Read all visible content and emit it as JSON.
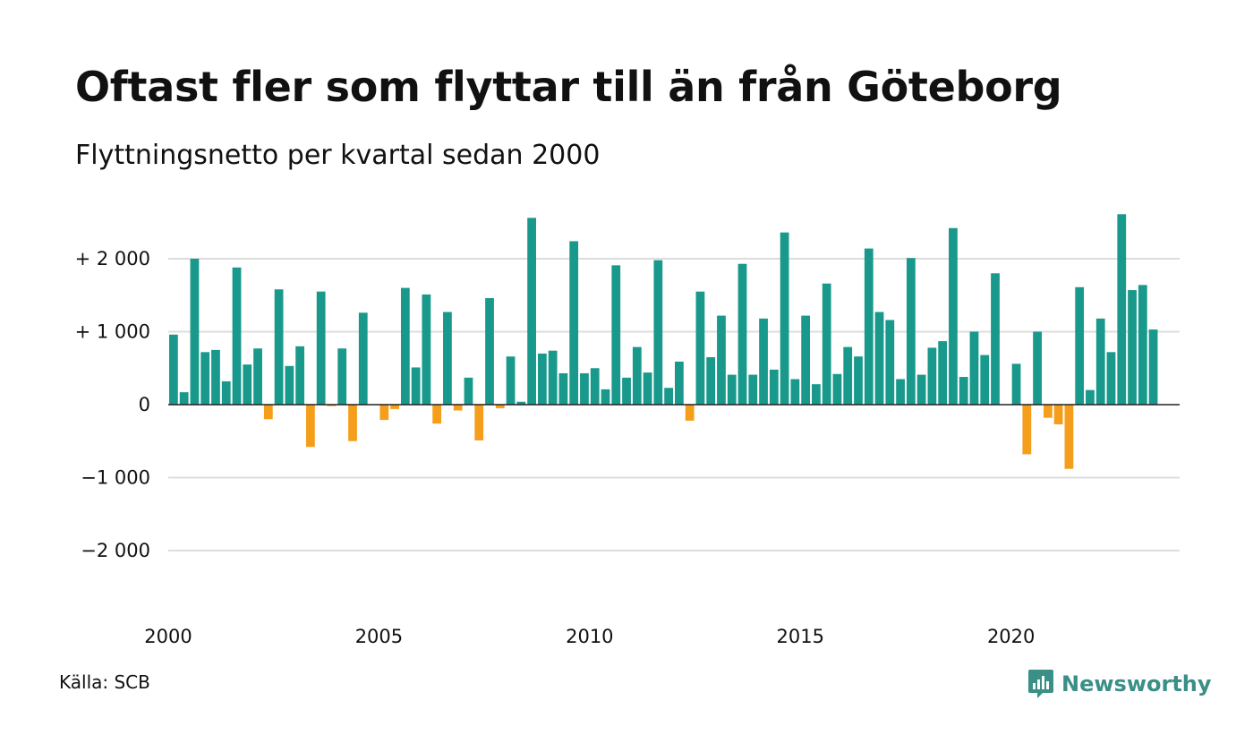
{
  "header": {
    "title": "Oftast fler som flyttar till än från Göteborg",
    "subtitle": "Flyttningsnetto per kvartal sedan 2000"
  },
  "footer": {
    "source": "Källa: SCB",
    "brand": "Newsworthy"
  },
  "colors": {
    "positive": "#18998b",
    "negative": "#f59e1b",
    "gridline": "#dddddd",
    "zeroline": "#222222",
    "brand": "#3a8f86"
  },
  "chart_data": {
    "type": "bar",
    "title": "Oftast fler som flyttar till än från Göteborg",
    "subtitle": "Flyttningsnetto per kvartal sedan 2000",
    "xlabel": "",
    "ylabel": "",
    "ylim": [
      -2500,
      2700
    ],
    "grid": true,
    "legend": "none",
    "x_tick_labels": [
      "2000",
      "2005",
      "2010",
      "2015",
      "2020"
    ],
    "y_ticks": [
      {
        "value": 2000,
        "label": "+ 2 000"
      },
      {
        "value": 1000,
        "label": "+ 1 000"
      },
      {
        "value": 0,
        "label": "0"
      },
      {
        "value": -1000,
        "label": "−1 000"
      },
      {
        "value": -2000,
        "label": "−2 000"
      }
    ],
    "categories": [
      "2000 K1",
      "2000 K2",
      "2000 K3",
      "2000 K4",
      "2001 K1",
      "2001 K2",
      "2001 K3",
      "2001 K4",
      "2002 K1",
      "2002 K2",
      "2002 K3",
      "2002 K4",
      "2003 K1",
      "2003 K2",
      "2003 K3",
      "2003 K4",
      "2004 K1",
      "2004 K2",
      "2004 K3",
      "2004 K4",
      "2005 K1",
      "2005 K2",
      "2005 K3",
      "2005 K4",
      "2006 K1",
      "2006 K2",
      "2006 K3",
      "2006 K4",
      "2007 K1",
      "2007 K2",
      "2007 K3",
      "2007 K4",
      "2008 K1",
      "2008 K2",
      "2008 K3",
      "2008 K4",
      "2009 K1",
      "2009 K2",
      "2009 K3",
      "2009 K4",
      "2010 K1",
      "2010 K2",
      "2010 K3",
      "2010 K4",
      "2011 K1",
      "2011 K2",
      "2011 K3",
      "2011 K4",
      "2012 K1",
      "2012 K2",
      "2012 K3",
      "2012 K4",
      "2013 K1",
      "2013 K2",
      "2013 K3",
      "2013 K4",
      "2014 K1",
      "2014 K2",
      "2014 K3",
      "2014 K4",
      "2015 K1",
      "2015 K2",
      "2015 K3",
      "2015 K4",
      "2016 K1",
      "2016 K2",
      "2016 K3",
      "2016 K4",
      "2017 K1",
      "2017 K2",
      "2017 K3",
      "2017 K4",
      "2018 K1",
      "2018 K2",
      "2018 K3",
      "2018 K4",
      "2019 K1",
      "2019 K2",
      "2019 K3",
      "2019 K4",
      "2020 K1",
      "2020 K2",
      "2020 K3",
      "2020 K4",
      "2021 K1",
      "2021 K2",
      "2021 K3",
      "2021 K4",
      "2022 K1",
      "2022 K2",
      "2022 K3",
      "2022 K4",
      "2023 K1",
      "2023 K2",
      "2023 K3",
      "2023 K4"
    ],
    "values": [
      960,
      170,
      2000,
      720,
      750,
      320,
      1880,
      550,
      770,
      -200,
      1580,
      530,
      800,
      -580,
      1550,
      -20,
      770,
      -500,
      1260,
      0,
      -210,
      -60,
      1600,
      510,
      1510,
      -260,
      1270,
      -80,
      370,
      -490,
      1460,
      -50,
      660,
      40,
      2560,
      700,
      740,
      430,
      2240,
      430,
      500,
      210,
      1910,
      370,
      790,
      440,
      1980,
      230,
      590,
      -220,
      1550,
      650,
      1220,
      410,
      1930,
      410,
      1180,
      480,
      2360,
      350,
      1220,
      280,
      1660,
      420,
      790,
      660,
      2140,
      1270,
      1160,
      350,
      2010,
      410,
      780,
      870,
      2420,
      380,
      1000,
      680,
      1800,
      0,
      560,
      -680,
      1000,
      -180,
      -270,
      -880,
      1610,
      200,
      1180,
      720,
      2610,
      1570,
      1640,
      1030,
      0,
      0
    ]
  }
}
